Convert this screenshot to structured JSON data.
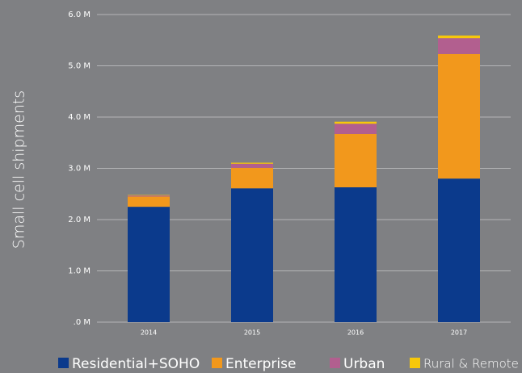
{
  "chart_data": {
    "type": "stacked_bar",
    "y_label": "Small cell shipments",
    "categories": [
      "2014",
      "2015",
      "2016",
      "2017"
    ],
    "series": [
      {
        "name": "Residential+SOHO",
        "color": "#0b3a8c",
        "values": [
          2.25,
          2.61,
          2.63,
          2.8
        ]
      },
      {
        "name": "Enterprise",
        "color": "#f2981c",
        "values": [
          0.2,
          0.4,
          1.04,
          2.43
        ]
      },
      {
        "name": "Urban",
        "color": "#b25f8f",
        "values": [
          0.02,
          0.08,
          0.2,
          0.31
        ]
      },
      {
        "name": "Rural & Remote",
        "color": "#f7c80a",
        "values": [
          0.01,
          0.02,
          0.04,
          0.05
        ]
      }
    ],
    "ylim": [
      0,
      6
    ],
    "yticks": [
      {
        "value": 0,
        "label": ".0 M"
      },
      {
        "value": 1,
        "label": "1.0 M"
      },
      {
        "value": 2,
        "label": "2.0 M"
      },
      {
        "value": 3,
        "label": "3.0 M"
      },
      {
        "value": 4,
        "label": "4.0 M"
      },
      {
        "value": 5,
        "label": "5.0 M"
      },
      {
        "value": 6,
        "label": "6.0 M"
      }
    ],
    "grid": true
  }
}
